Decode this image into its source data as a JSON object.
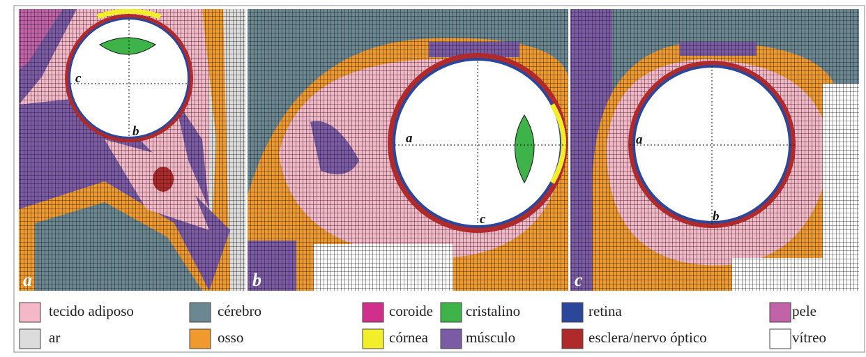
{
  "panels": [
    {
      "label": "a",
      "axis_labels": [
        "c",
        "b"
      ]
    },
    {
      "label": "b",
      "axis_labels": [
        "a",
        "c"
      ]
    },
    {
      "label": "c",
      "axis_labels": [
        "a",
        "b"
      ]
    }
  ],
  "legend": [
    {
      "label": "tecido adiposo",
      "color": "#f4b8c8"
    },
    {
      "label": "cérebro",
      "color": "#6b8791"
    },
    {
      "label": "coroide",
      "color": "#d22f8c"
    },
    {
      "label": "cristalino",
      "color": "#3db349"
    },
    {
      "label": "retina",
      "color": "#2b479b"
    },
    {
      "label": "pele",
      "color": "#c263a9"
    },
    {
      "label": "ar",
      "color": "#dcdcdc"
    },
    {
      "label": "osso",
      "color": "#f09a2e"
    },
    {
      "label": "córnea",
      "color": "#f2ef2a"
    },
    {
      "label": "músculo",
      "color": "#7b5aa6"
    },
    {
      "label": "esclera/nervo óptico",
      "color": "#b12a2b"
    },
    {
      "label": "vítreo",
      "color": "#ffffff"
    }
  ]
}
